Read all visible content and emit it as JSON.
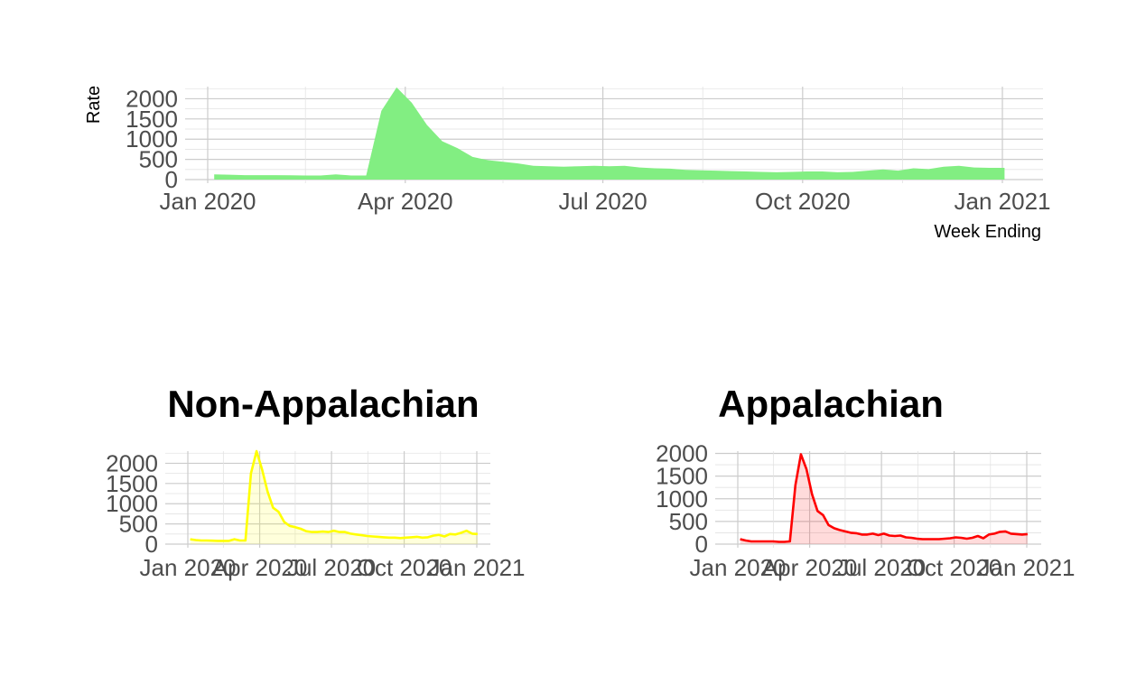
{
  "chart_data": [
    {
      "type": "area",
      "title": "",
      "xlabel": "Week Ending",
      "ylabel": "Rate",
      "xlim": [
        "2020-01-01",
        "2021-01-01"
      ],
      "ylim": [
        0,
        2300
      ],
      "x_ticks": [
        "Jan 2020",
        "Apr 2020",
        "Jul 2020",
        "Oct 2020",
        "Jan 2021"
      ],
      "y_ticks": [
        "0",
        "500",
        "1000",
        "1500",
        "2000"
      ],
      "fill_color": "#82ee82",
      "line_color": "",
      "grid": true,
      "series": [
        {
          "x": [
            "2020-01-04",
            "2020-01-11",
            "2020-01-18",
            "2020-01-25",
            "2020-02-01",
            "2020-02-08",
            "2020-02-15",
            "2020-02-22",
            "2020-02-29",
            "2020-03-07",
            "2020-03-14",
            "2020-03-21",
            "2020-03-28",
            "2020-04-04",
            "2020-04-11",
            "2020-04-18",
            "2020-04-25",
            "2020-05-02",
            "2020-05-09",
            "2020-05-16",
            "2020-05-23",
            "2020-05-30",
            "2020-06-06",
            "2020-06-13",
            "2020-06-20",
            "2020-06-27",
            "2020-07-04",
            "2020-07-11",
            "2020-07-18",
            "2020-07-25",
            "2020-08-01",
            "2020-08-08",
            "2020-08-15",
            "2020-08-22",
            "2020-08-29",
            "2020-09-05",
            "2020-09-12",
            "2020-09-19",
            "2020-09-26",
            "2020-10-03",
            "2020-10-10",
            "2020-10-17",
            "2020-10-24",
            "2020-10-31",
            "2020-11-07",
            "2020-11-14",
            "2020-11-21",
            "2020-11-28",
            "2020-12-05",
            "2020-12-12",
            "2020-12-19",
            "2020-12-26",
            "2021-01-02"
          ],
          "values": [
            130,
            120,
            110,
            110,
            110,
            105,
            100,
            100,
            130,
            100,
            100,
            1700,
            2280,
            1900,
            1350,
            950,
            780,
            560,
            480,
            440,
            400,
            340,
            330,
            320,
            330,
            340,
            330,
            340,
            300,
            280,
            270,
            240,
            230,
            220,
            210,
            200,
            190,
            180,
            190,
            200,
            200,
            180,
            190,
            220,
            250,
            220,
            280,
            260,
            320,
            340,
            300,
            290,
            290
          ]
        }
      ]
    },
    {
      "type": "area",
      "title": "Non-Appalachian",
      "xlabel": "",
      "ylabel": "",
      "xlim": [
        "2020-01-01",
        "2021-01-01"
      ],
      "ylim": [
        0,
        2300
      ],
      "x_ticks": [
        "Jan 2020",
        "Apr 2020",
        "Jul 2020",
        "Oct 2020",
        "Jan 2021"
      ],
      "y_ticks": [
        "0",
        "500",
        "1000",
        "1500",
        "2000"
      ],
      "fill_color": "#ffff00",
      "line_color": "#ffff00",
      "grid": true,
      "series": [
        {
          "x": [
            "2020-01-04",
            "2020-01-11",
            "2020-01-18",
            "2020-01-25",
            "2020-02-01",
            "2020-02-08",
            "2020-02-15",
            "2020-02-22",
            "2020-02-29",
            "2020-03-07",
            "2020-03-14",
            "2020-03-21",
            "2020-03-28",
            "2020-04-04",
            "2020-04-11",
            "2020-04-18",
            "2020-04-25",
            "2020-05-02",
            "2020-05-09",
            "2020-05-16",
            "2020-05-23",
            "2020-05-30",
            "2020-06-06",
            "2020-06-13",
            "2020-06-20",
            "2020-06-27",
            "2020-07-04",
            "2020-07-11",
            "2020-07-18",
            "2020-07-25",
            "2020-08-01",
            "2020-08-08",
            "2020-08-15",
            "2020-08-22",
            "2020-08-29",
            "2020-09-05",
            "2020-09-12",
            "2020-09-19",
            "2020-09-26",
            "2020-10-03",
            "2020-10-10",
            "2020-10-17",
            "2020-10-24",
            "2020-10-31",
            "2020-11-07",
            "2020-11-14",
            "2020-11-21",
            "2020-11-28",
            "2020-12-05",
            "2020-12-12",
            "2020-12-19",
            "2020-12-26",
            "2021-01-02"
          ],
          "values": [
            120,
            100,
            90,
            90,
            85,
            80,
            80,
            80,
            120,
            90,
            90,
            1750,
            2300,
            1850,
            1300,
            900,
            800,
            550,
            450,
            420,
            380,
            320,
            300,
            300,
            310,
            300,
            330,
            300,
            300,
            260,
            240,
            220,
            200,
            190,
            180,
            170,
            160,
            160,
            150,
            160,
            170,
            180,
            160,
            170,
            210,
            230,
            190,
            250,
            240,
            280,
            330,
            260,
            250
          ]
        }
      ]
    },
    {
      "type": "area",
      "title": "Appalachian",
      "xlabel": "",
      "ylabel": "",
      "xlim": [
        "2020-01-01",
        "2021-01-01"
      ],
      "ylim": [
        0,
        2050
      ],
      "x_ticks": [
        "Jan 2020",
        "Apr 2020",
        "Jul 2020",
        "Oct 2020",
        "Jan 2021"
      ],
      "y_ticks": [
        "0",
        "500",
        "1000",
        "1500",
        "2000"
      ],
      "fill_color": "#ff0000",
      "line_color": "#ff0000",
      "grid": true,
      "series": [
        {
          "x": [
            "2020-01-04",
            "2020-01-11",
            "2020-01-18",
            "2020-01-25",
            "2020-02-01",
            "2020-02-08",
            "2020-02-15",
            "2020-02-22",
            "2020-02-29",
            "2020-03-07",
            "2020-03-14",
            "2020-03-21",
            "2020-03-28",
            "2020-04-04",
            "2020-04-11",
            "2020-04-18",
            "2020-04-25",
            "2020-05-02",
            "2020-05-09",
            "2020-05-16",
            "2020-05-23",
            "2020-05-30",
            "2020-06-06",
            "2020-06-13",
            "2020-06-20",
            "2020-06-27",
            "2020-07-04",
            "2020-07-11",
            "2020-07-18",
            "2020-07-25",
            "2020-08-01",
            "2020-08-08",
            "2020-08-15",
            "2020-08-22",
            "2020-08-29",
            "2020-09-05",
            "2020-09-12",
            "2020-09-19",
            "2020-09-26",
            "2020-10-03",
            "2020-10-10",
            "2020-10-17",
            "2020-10-24",
            "2020-10-31",
            "2020-11-07",
            "2020-11-14",
            "2020-11-21",
            "2020-11-28",
            "2020-12-05",
            "2020-12-12",
            "2020-12-19",
            "2020-12-26",
            "2021-01-02"
          ],
          "values": [
            110,
            80,
            60,
            60,
            60,
            60,
            60,
            50,
            50,
            60,
            1300,
            1980,
            1650,
            1100,
            730,
            640,
            420,
            350,
            310,
            280,
            250,
            240,
            210,
            210,
            230,
            200,
            230,
            190,
            180,
            190,
            150,
            140,
            120,
            110,
            110,
            110,
            110,
            120,
            130,
            150,
            140,
            120,
            140,
            180,
            130,
            210,
            230,
            270,
            280,
            230,
            220,
            210,
            220
          ]
        }
      ]
    }
  ]
}
